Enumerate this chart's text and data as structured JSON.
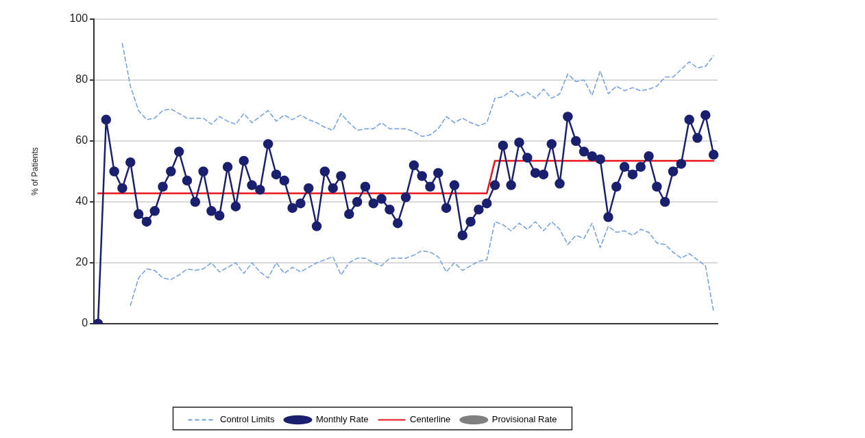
{
  "chart_data": {
    "type": "line",
    "ylabel": "% of Patients",
    "categories": [
      null,
      null,
      null,
      null,
      null,
      null,
      null,
      null,
      null,
      null,
      null,
      null,
      null,
      null,
      null,
      null,
      null,
      null,
      null,
      null,
      null,
      null,
      null,
      null,
      null,
      null,
      null,
      null,
      null,
      null,
      null,
      null,
      null,
      null,
      null,
      null,
      null,
      null,
      null,
      null,
      null,
      null,
      null,
      null,
      null,
      null,
      null,
      null,
      null,
      null,
      null,
      null,
      null,
      null,
      null,
      null,
      null,
      null,
      null,
      null,
      null,
      null,
      null,
      null,
      null,
      null,
      null,
      null,
      null,
      null,
      null,
      null,
      null,
      null,
      null,
      null,
      null
    ],
    "ylim": [
      0,
      100
    ],
    "yticks": [
      0,
      20,
      40,
      60,
      80,
      100
    ],
    "grid": "y",
    "legend": "bottom",
    "series": [
      {
        "name": "Control Limits",
        "color": "#6f9fe0",
        "line_style": "dashed",
        "marker": "none",
        "values": [
          null,
          null,
          null,
          92,
          78,
          70,
          67,
          67.5,
          70,
          70.5,
          69,
          67.5,
          67.5,
          67.5,
          65.5,
          68,
          66.5,
          65.5,
          69,
          66,
          68,
          70,
          66.5,
          68.5,
          67,
          68.5,
          67,
          66,
          64.5,
          63.5,
          69,
          66,
          63.5,
          64,
          64,
          66,
          64,
          64,
          64,
          63,
          61.5,
          62,
          64,
          68,
          66,
          67.5,
          66,
          65,
          66,
          74,
          74.5,
          76.5,
          74.5,
          76,
          74,
          77,
          74,
          75.5,
          82,
          79.5,
          80,
          75,
          83,
          75.5,
          78,
          76.5,
          77.5,
          76.5,
          77,
          78,
          81,
          81,
          83.5,
          86,
          84,
          84.5,
          88
        ]
      },
      {
        "color": "#6f9fe0",
        "line_style": "dashed",
        "marker": "none",
        "values": [
          null,
          null,
          null,
          null,
          6,
          15,
          18,
          17.5,
          15,
          14.5,
          16,
          18,
          17.5,
          18,
          20,
          17,
          18.5,
          20,
          16.5,
          20,
          17,
          15,
          20,
          16.5,
          18.5,
          17,
          18.5,
          20,
          21,
          22,
          16,
          20,
          21.5,
          21.5,
          20,
          19,
          21.5,
          21.5,
          21.5,
          22.5,
          24,
          23.5,
          22,
          17,
          20,
          17.5,
          19,
          20.5,
          21,
          33.5,
          32.5,
          30.5,
          33,
          31,
          33.5,
          30.5,
          33.5,
          31,
          26,
          29,
          28,
          33,
          25,
          32,
          30,
          30.5,
          29,
          31,
          30,
          26.5,
          26,
          23.5,
          21.5,
          23,
          21,
          19,
          4
        ]
      },
      {
        "name": "Monthly Rate",
        "color": "#1a1f6e",
        "line_style": "solid",
        "marker": "circle",
        "values": [
          0,
          67,
          50,
          44.5,
          53,
          36,
          33.5,
          37,
          45,
          50,
          56.5,
          47,
          40,
          50,
          37,
          35.5,
          51.5,
          38.5,
          53.5,
          45.5,
          44,
          59,
          49,
          47,
          38,
          39.5,
          44.5,
          32,
          50,
          44.5,
          48.5,
          36,
          40,
          45,
          39.5,
          41,
          37.5,
          33,
          41.5,
          52,
          48.5,
          45,
          49.5,
          38,
          45.5,
          29,
          33.5,
          37.5,
          39.5,
          45.5,
          58.5,
          45.5,
          59.5,
          54.5,
          49.5,
          49,
          59,
          46,
          68,
          60,
          56.5,
          55,
          54,
          35,
          45,
          51.5,
          49,
          51.5,
          55,
          45,
          40,
          50,
          52.5,
          67,
          61,
          68.5,
          55.5
        ]
      },
      {
        "name": "Centerline",
        "color": "#e8141b",
        "line_style": "solid",
        "marker": "none",
        "values": [
          42.8,
          42.8,
          42.8,
          42.8,
          42.8,
          42.8,
          42.8,
          42.8,
          42.8,
          42.8,
          42.8,
          42.8,
          42.8,
          42.8,
          42.8,
          42.8,
          42.8,
          42.8,
          42.8,
          42.8,
          42.8,
          42.8,
          42.8,
          42.8,
          42.8,
          42.8,
          42.8,
          42.8,
          42.8,
          42.8,
          42.8,
          42.8,
          42.8,
          42.8,
          42.8,
          42.8,
          42.8,
          42.8,
          42.8,
          42.8,
          42.8,
          42.8,
          42.8,
          42.8,
          42.8,
          42.8,
          42.8,
          42.8,
          42.8,
          53.5,
          53.5,
          53.5,
          53.5,
          53.5,
          53.5,
          53.5,
          53.5,
          53.5,
          53.5,
          53.5,
          53.5,
          53.5,
          53.5,
          53.5,
          53.5,
          53.5,
          53.5,
          53.5,
          53.5,
          53.5,
          53.5,
          53.5,
          53.5,
          53.5,
          53.5,
          53.5,
          53.5
        ]
      },
      {
        "name": "Provisional Rate",
        "color": "#808080",
        "line_style": "solid",
        "marker": "circle",
        "values": [
          null,
          null,
          null,
          null,
          null,
          null,
          null,
          null,
          null,
          null,
          null,
          null,
          null,
          null,
          null,
          null,
          null,
          null,
          null,
          null,
          null,
          null,
          null,
          null,
          null,
          null,
          null,
          null,
          null,
          null,
          null,
          null,
          null,
          null,
          null,
          null,
          null,
          null,
          null,
          null,
          null,
          null,
          null,
          null,
          null,
          null,
          null,
          null,
          null,
          null,
          null,
          null,
          null,
          null,
          null,
          null,
          null,
          null,
          null,
          null,
          null,
          null,
          null,
          null,
          null,
          null,
          null,
          null,
          null,
          null,
          null,
          null,
          null,
          null,
          null,
          null,
          null
        ]
      }
    ]
  }
}
